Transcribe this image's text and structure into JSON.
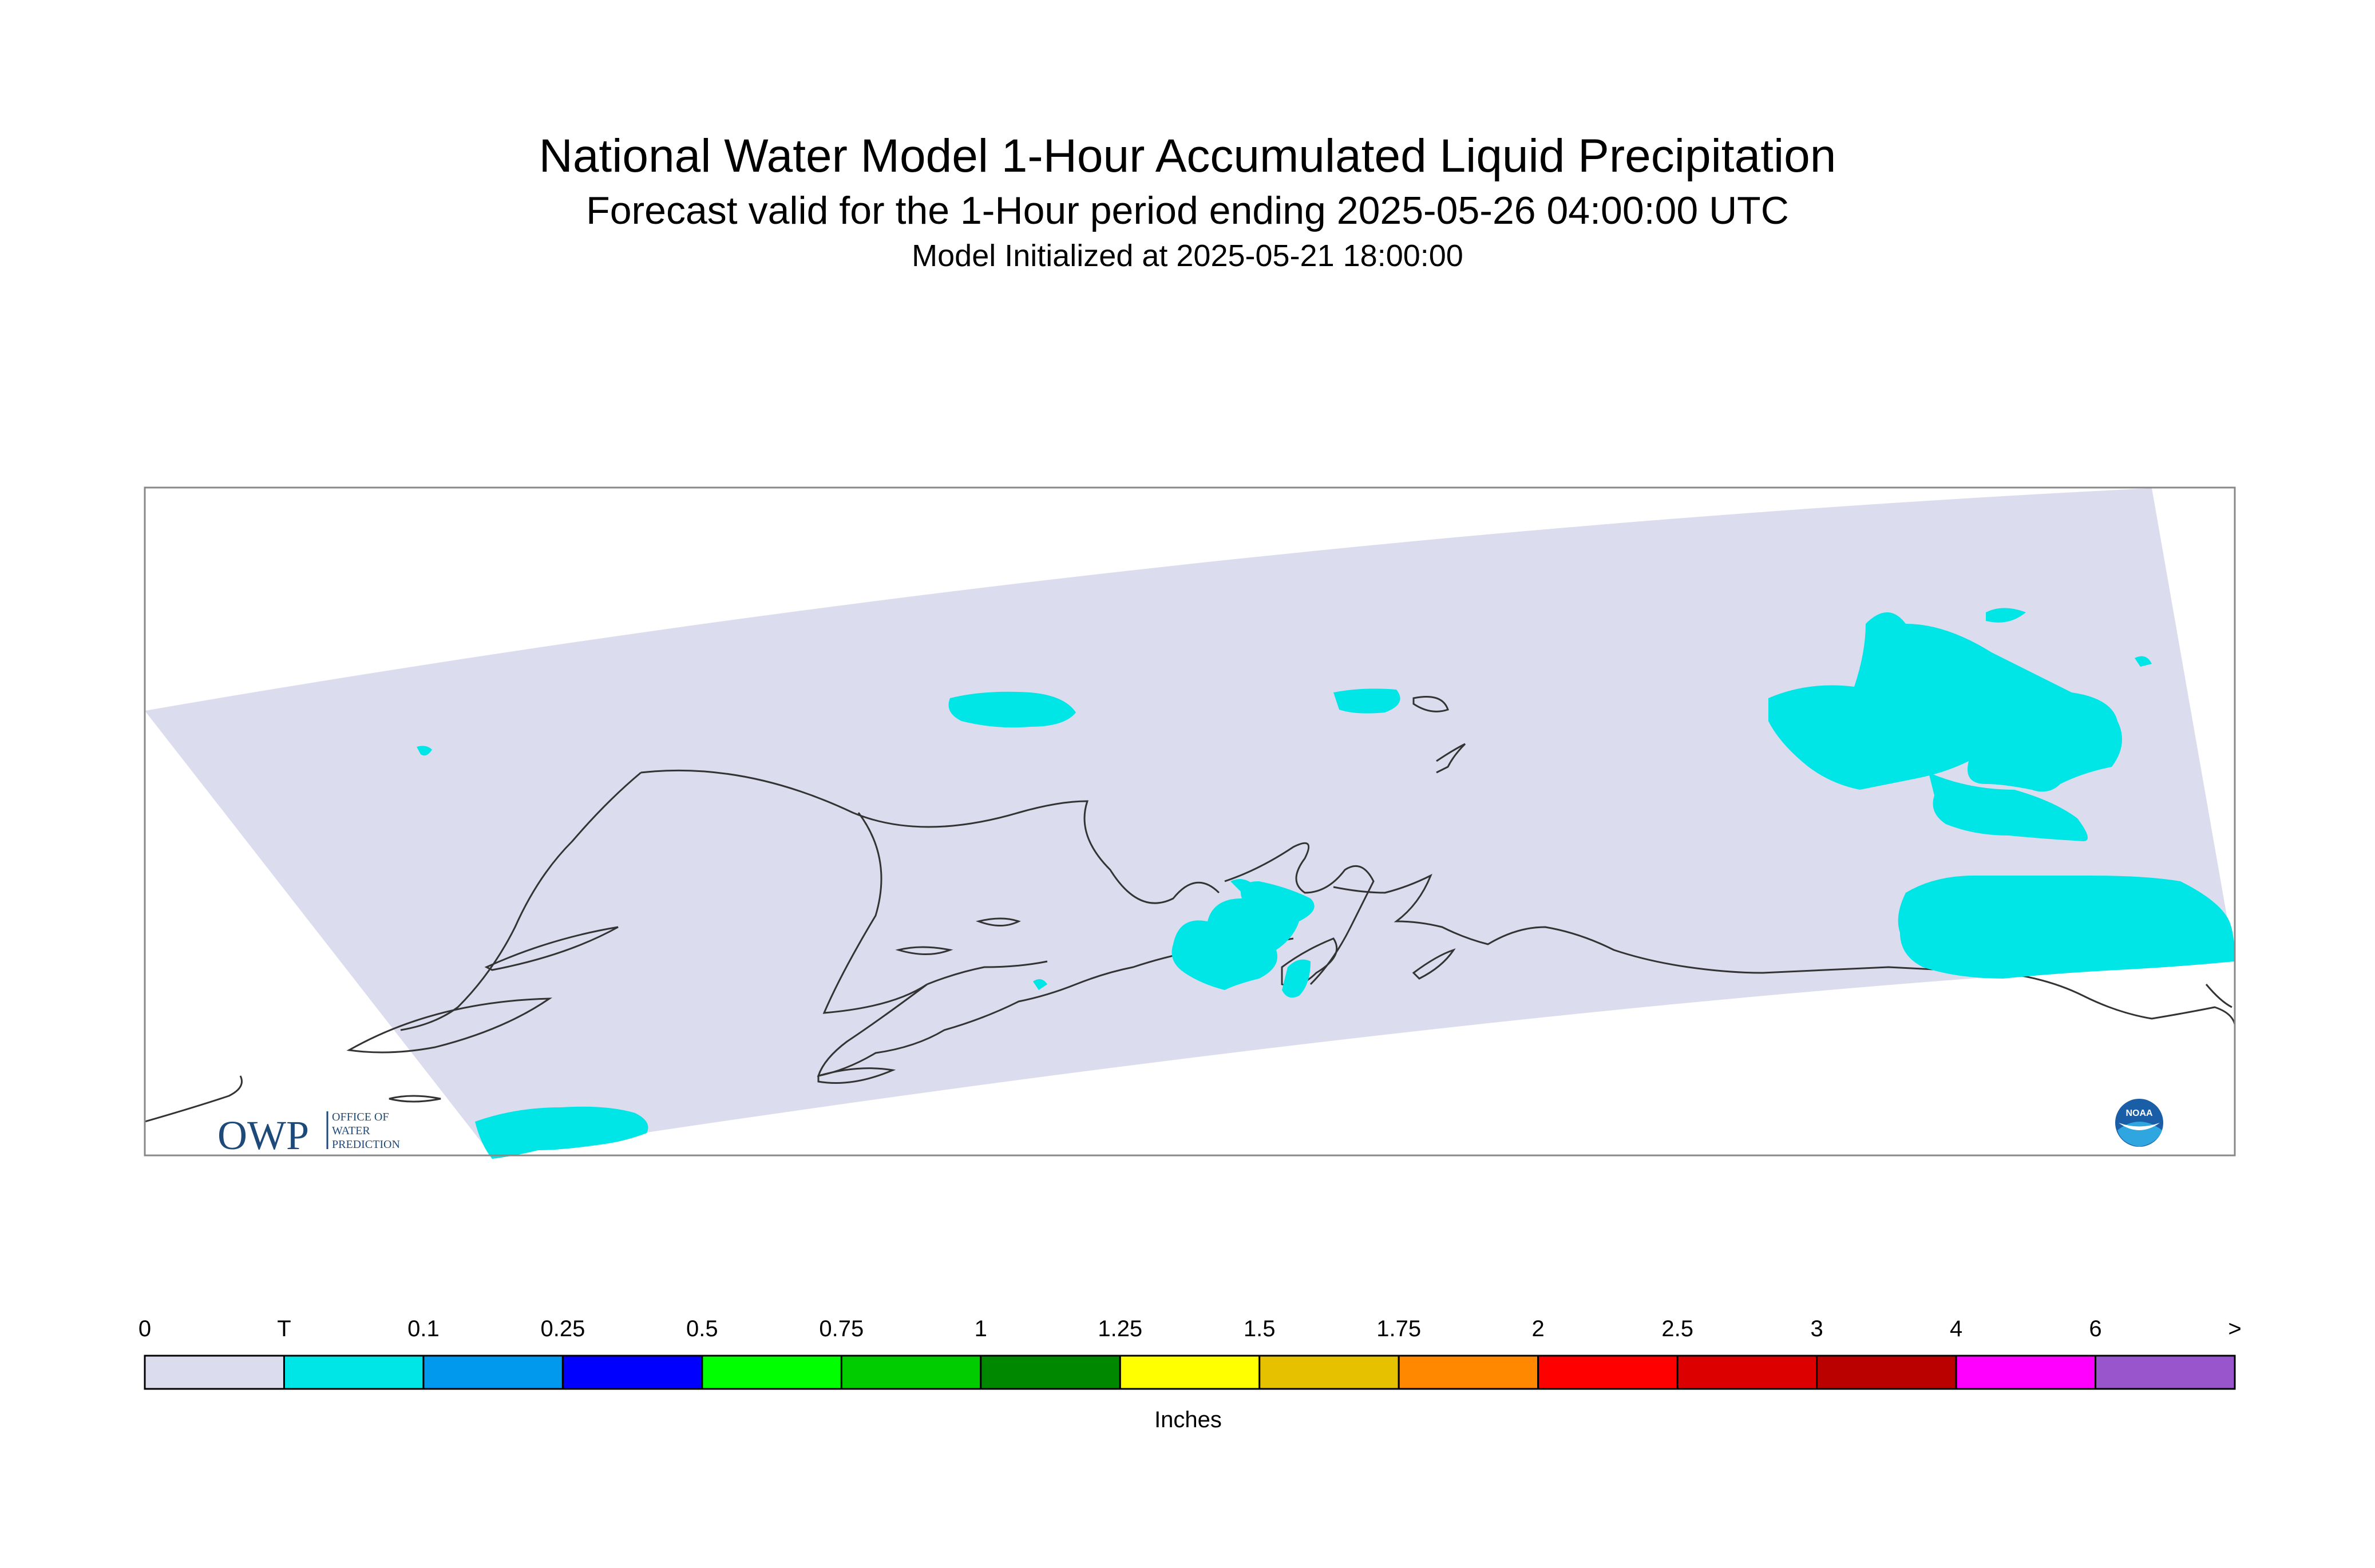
{
  "header": {
    "title": "National Water Model 1-Hour Accumulated Liquid Precipitation",
    "subtitle": "Forecast valid for the 1-Hour period ending 2025-05-26 04:00:00 UTC",
    "initialized": "Model Initialized at 2025-05-21 18:00:00"
  },
  "colors": {
    "domain_fill": "#dcdcef",
    "precip_trace": "#00e5e5",
    "coastline": "#333333",
    "frame": "#888888"
  },
  "logos": {
    "owp_text": "OWP",
    "owp_subtext": [
      "OFFICE OF",
      "WATER",
      "PREDICTION"
    ],
    "noaa_text": "NOAA"
  },
  "legend": {
    "unit_label": "Inches",
    "tick_labels": [
      "0",
      "T",
      "0.1",
      "0.25",
      "0.5",
      "0.75",
      "1",
      "1.25",
      "1.5",
      "1.75",
      "2",
      "2.5",
      "3",
      "4",
      "6",
      ">"
    ],
    "colors": [
      "#dcdcef",
      "#00e5e5",
      "#0099ee",
      "#0000ff",
      "#00ff00",
      "#00cc00",
      "#008800",
      "#ffff00",
      "#e5c100",
      "#ff8800",
      "#ff0000",
      "#dd0000",
      "#bb0000",
      "#ff00ff",
      "#9955cc"
    ]
  }
}
